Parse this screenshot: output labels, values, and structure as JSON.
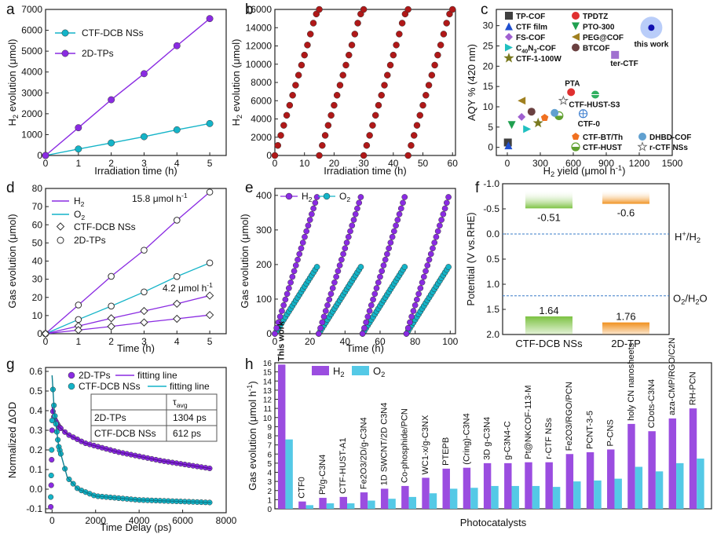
{
  "panel_letters": {
    "a": "a",
    "b": "b",
    "c": "c",
    "d": "d",
    "e": "e",
    "f": "f",
    "g": "g",
    "h": "h"
  },
  "colors": {
    "purple": "#8a2be2",
    "cyan": "#14b4c8",
    "red": "#b01818",
    "green_bar": "#7cc242",
    "orange_bar": "#f0901e",
    "pink": "#e060d0",
    "h_purple": "#9b4de0",
    "h_cyan": "#54c9e6"
  },
  "chart_data": [
    {
      "id": "a",
      "type": "line",
      "xlabel": "Irradiation time (h)",
      "ylabel": "H2 evolution (μmol)",
      "xlim": [
        0,
        5.5
      ],
      "ylim": [
        0,
        7000
      ],
      "xticks": [
        0,
        1,
        2,
        3,
        4,
        5
      ],
      "yticks": [
        0,
        1000,
        2000,
        3000,
        4000,
        5000,
        6000,
        7000
      ],
      "x": [
        0,
        1,
        2,
        3,
        4,
        5
      ],
      "series": [
        {
          "name": "CTF-DCB NSs",
          "values": [
            0,
            310,
            600,
            900,
            1230,
            1530
          ],
          "color": "#14b4c8"
        },
        {
          "name": "2D-TPs",
          "values": [
            0,
            1330,
            2670,
            3920,
            5260,
            6560
          ],
          "color": "#8a2be2"
        }
      ]
    },
    {
      "id": "b",
      "type": "scatter",
      "xlabel": "Irradiation time (h)",
      "ylabel": "H2 evolution (μmol)",
      "xlim": [
        0,
        61
      ],
      "ylim": [
        0,
        16000
      ],
      "xticks": [
        0,
        10,
        20,
        30,
        40,
        50,
        60
      ],
      "yticks": [
        0,
        2000,
        4000,
        6000,
        8000,
        10000,
        12000,
        14000,
        16000
      ],
      "cycles": [
        0,
        15,
        30,
        45
      ],
      "cycle_hours": [
        0,
        1,
        2,
        3,
        4,
        5,
        6,
        7,
        8,
        9,
        10,
        11,
        12,
        13,
        14,
        15
      ],
      "cycle_values": [
        0,
        1100,
        2200,
        3300,
        4400,
        5500,
        6600,
        7700,
        8800,
        9900,
        11000,
        12100,
        13300,
        14500,
        15500,
        16000
      ],
      "color": "#b01818"
    },
    {
      "id": "c",
      "type": "scatter",
      "xlabel": "H2 yield (μmol h-1)",
      "ylabel": "AQY % (420 nm)",
      "xlim": [
        -100,
        1500
      ],
      "ylim": [
        -2,
        34
      ],
      "xticks": [
        0,
        300,
        600,
        900,
        1200,
        1500
      ],
      "yticks": [
        0,
        5,
        10,
        15,
        20,
        25,
        30
      ],
      "points": [
        {
          "name": "TP-COF",
          "x": 5,
          "y": 1.2,
          "color": "#404040",
          "shape": "square"
        },
        {
          "name": "CTF film",
          "x": 10,
          "y": 0.5,
          "color": "#1f4fd0",
          "shape": "triangle"
        },
        {
          "name": "FS-COF",
          "x": 130,
          "y": 7.5,
          "color": "#a060d0",
          "shape": "diamond"
        },
        {
          "name": "C40N3-COF",
          "x": 180,
          "y": 4.5,
          "color": "#20c0c0",
          "shape": "tri-right"
        },
        {
          "name": "CTF-1-100W",
          "x": 280,
          "y": 6,
          "color": "#7a7a20",
          "shape": "star"
        },
        {
          "name": "TPDTZ",
          "x": 580,
          "y": 13.6,
          "color": "#e03030",
          "shape": "circle"
        },
        {
          "name": "PTO-300",
          "x": 40,
          "y": 5.5,
          "color": "#20a050",
          "shape": "tri-down"
        },
        {
          "name": "PEG@COF",
          "x": 130,
          "y": 11.5,
          "color": "#a08020",
          "shape": "tri-left"
        },
        {
          "name": "BTCOF",
          "x": 220,
          "y": 8.8,
          "color": "#6a4040",
          "shape": "circle"
        },
        {
          "name": "CTF-BT/Th",
          "x": 340,
          "y": 7.3,
          "color": "#f07020",
          "shape": "pentagon"
        },
        {
          "name": "CTF-HUST",
          "x": 470,
          "y": 7.8,
          "color": "#60a030",
          "shape": "half-circle"
        },
        {
          "name": "DHBD-COF",
          "x": 430,
          "y": 8.5,
          "color": "#60a0d0",
          "shape": "circle"
        },
        {
          "name": "r-CTF NSs",
          "x": 510,
          "y": 11.5,
          "color": "#707070",
          "shape": "star-open"
        },
        {
          "name": "ter-CTF",
          "x": 980,
          "y": 22.8,
          "color": "#a070d0",
          "shape": "square"
        },
        {
          "name": "CTF-HUST-S3",
          "x": 800,
          "y": 13,
          "color": "#30b060",
          "shape": "circle-half"
        },
        {
          "name": "CTF-0",
          "x": 690,
          "y": 8.3,
          "color": "#4080d0",
          "shape": "circle-open"
        },
        {
          "name": "this work",
          "x": 1310,
          "y": 29.5,
          "color": "#1010b0",
          "shape": "big-circle"
        }
      ],
      "annotations": [
        "PTA",
        "CTF-HUST-S3",
        "CTF-0",
        "ter-CTF",
        "this work"
      ]
    },
    {
      "id": "d",
      "type": "line",
      "xlabel": "Time (h)",
      "ylabel": "Gas evolution (μmol)",
      "xlim": [
        0,
        5.5
      ],
      "ylim": [
        0,
        80
      ],
      "xticks": [
        0,
        1,
        2,
        3,
        4,
        5
      ],
      "yticks": [
        0,
        10,
        20,
        30,
        40,
        50,
        60,
        70,
        80
      ],
      "x": [
        0,
        1,
        2,
        3,
        4,
        5
      ],
      "series": [
        {
          "name": "H2 (2D-TPs)",
          "values": [
            0,
            15.8,
            31.6,
            46,
            62.5,
            78
          ],
          "color": "#8a2be2",
          "marker": "circle"
        },
        {
          "name": "O2 (2D-TPs)",
          "values": [
            0,
            7.8,
            15.2,
            23,
            31.5,
            39
          ],
          "color": "#14b4c8",
          "marker": "circle"
        },
        {
          "name": "H2 (CTF-DCB NSs)",
          "values": [
            0,
            4.2,
            8.5,
            12.5,
            16.5,
            21
          ],
          "color": "#8a2be2",
          "marker": "diamond"
        },
        {
          "name": "O2 (CTF-DCB NSs)",
          "values": [
            0,
            2,
            4,
            6.2,
            8.2,
            10.3
          ],
          "color": "#8a2be2",
          "marker": "diamond"
        }
      ],
      "legend": [
        "H2",
        "O2",
        "CTF-DCB NSs",
        "2D-TPs"
      ],
      "annotations": [
        "15.8 μmol h-1",
        "4.2 μmol h-1"
      ]
    },
    {
      "id": "e",
      "type": "scatter",
      "xlabel": "Time (h)",
      "ylabel": "Gas evolution (μmol)",
      "xlim": [
        0,
        103
      ],
      "ylim": [
        0,
        420
      ],
      "xticks": [
        0,
        20,
        40,
        60,
        80,
        100
      ],
      "yticks": [
        0,
        100,
        200,
        300,
        400
      ],
      "cycles": [
        0,
        25,
        50,
        75
      ],
      "cycle_length_h": 24,
      "series": [
        {
          "name": "H2",
          "end_value": 395,
          "color": "#8a2be2"
        },
        {
          "name": "O2",
          "end_value": 193,
          "color": "#14b4c8"
        }
      ]
    },
    {
      "id": "f",
      "type": "bar",
      "ylabel": "Potential (V vs.RHE)",
      "ylim": [
        2.0,
        -1.0
      ],
      "yticks": [
        -1.0,
        -0.5,
        0.0,
        0.5,
        1.0,
        1.5,
        2.0
      ],
      "categories": [
        "CTF-DCB NSs",
        "2D-TP"
      ],
      "cb": [
        -0.51,
        -0.6
      ],
      "vb": [
        1.64,
        1.76
      ],
      "cb_labels": [
        "-0.51",
        "-0.6"
      ],
      "vb_labels": [
        "1.64",
        "1.76"
      ],
      "ref_lines": [
        {
          "label": "H+/H2",
          "value": 0.0
        },
        {
          "label": "O2/H2O",
          "value": 1.23
        }
      ]
    },
    {
      "id": "g",
      "type": "scatter",
      "xlabel": "Time Delay (ps)",
      "ylabel": "Normalized ΔOD",
      "xlim": [
        -300,
        8000
      ],
      "ylim": [
        -0.12,
        0.62
      ],
      "xticks": [
        0,
        2000,
        4000,
        6000,
        8000
      ],
      "yticks": [
        -0.1,
        0.0,
        0.1,
        0.2,
        0.3,
        0.4,
        0.5,
        0.6
      ],
      "series": [
        {
          "name": "2D-TPs",
          "color": "#8a2be2",
          "fit": [
            {
              "x": 0,
              "y": 0.42
            },
            {
              "x": 100,
              "y": 0.36
            },
            {
              "x": 300,
              "y": 0.32
            },
            {
              "x": 700,
              "y": 0.28
            },
            {
              "x": 1500,
              "y": 0.235
            },
            {
              "x": 3000,
              "y": 0.19
            },
            {
              "x": 5000,
              "y": 0.145
            },
            {
              "x": 7300,
              "y": 0.105
            }
          ]
        },
        {
          "name": "CTF-DCB NSs",
          "color": "#14b4c8",
          "fit": [
            {
              "x": 0,
              "y": 0.58
            },
            {
              "x": 100,
              "y": 0.4
            },
            {
              "x": 300,
              "y": 0.22
            },
            {
              "x": 700,
              "y": 0.06
            },
            {
              "x": 1200,
              "y": 0.0
            },
            {
              "x": 2000,
              "y": -0.035
            },
            {
              "x": 4000,
              "y": -0.055
            },
            {
              "x": 7300,
              "y": -0.068
            }
          ]
        }
      ],
      "legend": [
        "2D-TPs",
        "fitting line",
        "CTF-DCB NSs",
        "fitting line"
      ],
      "table": {
        "header": [
          "",
          "τavg"
        ],
        "rows": [
          [
            "2D-TPs",
            "1304 ps"
          ],
          [
            "CTF-DCB NSs",
            "612 ps"
          ]
        ]
      }
    },
    {
      "id": "h",
      "type": "bar",
      "xlabel": "Photocatalysts",
      "ylabel": "Gas evolution (μmol h-1)",
      "ylim": [
        0,
        16
      ],
      "yticks": [
        0,
        1,
        2,
        3,
        4,
        5,
        6,
        7,
        8,
        9,
        10,
        11,
        12,
        13,
        14,
        15,
        16
      ],
      "categories": [
        "This work",
        "CTF0",
        "Pt/g-C3N4",
        "CTF-HUST-A1",
        "Fe2O3/2D/g-C3N4",
        "1D SWCNT/2D C3N4",
        "Co-phosphide/PCN",
        "WC1-x/g-C3NX",
        "PTEPB",
        "(Cring)-C3N4",
        "3D g-C3N4",
        "g-C3N4-C",
        "Pt@NKCOF-113-M",
        "r-CTF NSs",
        "Fe2O3/RGO/PCN",
        "PCNT-3-5",
        "P-CNS",
        "holy CN nanosheets",
        "CDots-C3N4",
        "aza-CMP/RGO/C2N",
        "RH-PCN"
      ],
      "series": [
        {
          "name": "H2",
          "values": [
            15.8,
            0.8,
            1.2,
            1.3,
            1.8,
            2.2,
            2.5,
            3.4,
            4.4,
            4.5,
            5.0,
            5.0,
            5.1,
            5.1,
            6.0,
            6.2,
            6.5,
            9.3,
            8.5,
            9.9,
            11.0
          ],
          "color": "#9b4de0"
        },
        {
          "name": "O2",
          "values": [
            7.6,
            0.4,
            0.6,
            0.6,
            0.9,
            1.1,
            1.3,
            1.7,
            2.2,
            2.3,
            2.5,
            2.5,
            2.5,
            2.4,
            3.0,
            3.1,
            3.3,
            4.6,
            4.1,
            5.0,
            5.5
          ],
          "color": "#54c9e6"
        }
      ]
    }
  ],
  "texts": {
    "a_x": "Irradiation time (h)",
    "a_y": "H",
    "a_y2": "2",
    "a_y3": " evolution (μmol)",
    "a_leg1": "CTF-DCB NSs",
    "a_leg2": "2D-TPs",
    "b_x": "Irradiation time (h)",
    "c_x1": "H",
    "c_x2": "2",
    "c_x3": " yield (μmol h",
    "c_x4": "-1",
    "c_x5": ")",
    "c_y": "AQY % (420 nm)",
    "c_leg": [
      "TP-COF",
      "CTF film",
      "FS-COF",
      "C40N3-COF",
      "CTF-1-100W",
      "TPDTZ",
      "PTO-300",
      "PEG@COF",
      "BTCOF"
    ],
    "c_leg2": [
      "CTF-BT/Th",
      "CTF-HUST",
      "DHBD-COF",
      "r-CTF NSs"
    ],
    "c_ann": {
      "this": "this work",
      "ter": "ter-CTF",
      "pta": "PTA",
      "hust": "CTF-HUST-S3",
      "ctf0": "CTF-0"
    },
    "d_x": "Time (h)",
    "d_y": "Gas evolution (μmol)",
    "d_leg": [
      "H",
      "O",
      "CTF-DCB NSs",
      "2D-TPs"
    ],
    "d_rate1": "15.8 μmol h",
    "d_rate2": "4.2 μmol h",
    "d_rate_sup": "-1",
    "e_x": "Time (h)",
    "e_y": "Gas evolution (μmol)",
    "e_leg1": "H",
    "e_leg2": "O",
    "f_y": "Potential (V vs.RHE)",
    "f_h": "H",
    "f_h2": "+",
    "f_h3": "/H",
    "f_h4": "2",
    "f_o": "O",
    "f_o2": "2",
    "f_o3": "/H",
    "f_o4": "2",
    "f_o5": "O",
    "g_x": "Time Delay (ps)",
    "g_y": "Normalized ΔOD",
    "g_leg": [
      "2D-TPs",
      "fitting line",
      "CTF-DCB NSs",
      "fitting line"
    ],
    "g_tau": "τ",
    "g_tau2": "avg",
    "g_r1": "2D-TPs",
    "g_v1": "1304 ps",
    "g_r2": "CTF-DCB NSs",
    "g_v2": "612 ps",
    "h_x": "Photocatalysts",
    "h_y": "Gas evolution (μmol h",
    "h_y2": "-1",
    "h_y3": ")",
    "h_leg1": "H",
    "h_leg2": "O",
    "sub2": "2",
    "this_work": "This work"
  }
}
